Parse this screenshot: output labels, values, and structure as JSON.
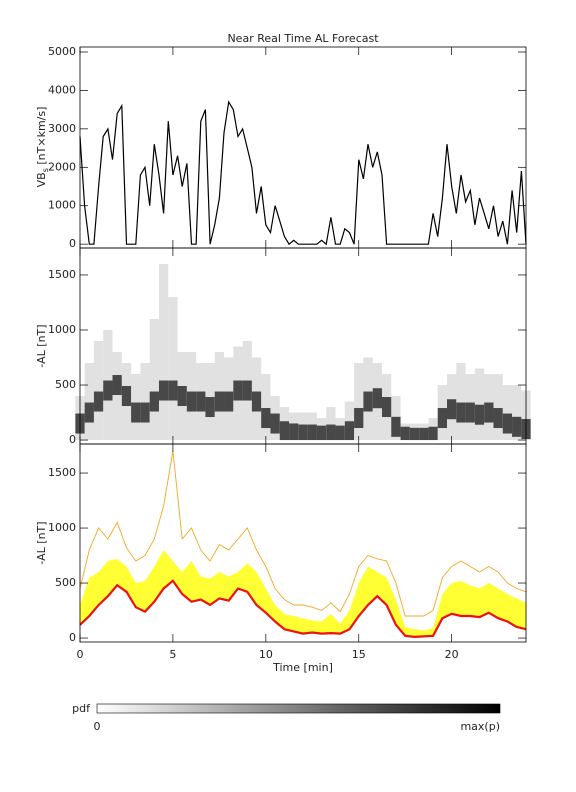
{
  "chart_data": [
    {
      "type": "line",
      "title": "Near Real Time AL Forecast",
      "ylabel": {
        "text": "VB",
        "subscript": "s",
        "units": " [nT×km/s]"
      },
      "xlim": [
        0,
        24
      ],
      "xticks": [
        0,
        5,
        10,
        15,
        20
      ],
      "ylim": [
        -100,
        5130
      ],
      "yticks": [
        0,
        1000,
        2000,
        3000,
        4000,
        5000
      ],
      "x": [
        0,
        0.25,
        0.5,
        0.75,
        1,
        1.25,
        1.5,
        1.75,
        2,
        2.25,
        2.5,
        2.75,
        3,
        3.25,
        3.5,
        3.75,
        4,
        4.25,
        4.5,
        4.75,
        5,
        5.25,
        5.5,
        5.75,
        6,
        6.25,
        6.5,
        6.75,
        7,
        7.25,
        7.5,
        7.75,
        8,
        8.25,
        8.5,
        8.75,
        9,
        9.25,
        9.5,
        9.75,
        10,
        10.25,
        10.5,
        10.75,
        11,
        11.25,
        11.5,
        11.75,
        12,
        12.25,
        12.5,
        12.75,
        13,
        13.25,
        13.5,
        13.75,
        14,
        14.25,
        14.5,
        14.75,
        15,
        15.25,
        15.5,
        15.75,
        16,
        16.25,
        16.5,
        16.75,
        17,
        17.25,
        17.5,
        17.75,
        18,
        18.25,
        18.5,
        18.75,
        19,
        19.25,
        19.5,
        19.75,
        20,
        20.25,
        20.5,
        20.75,
        21,
        21.25,
        21.5,
        21.75,
        22,
        22.25,
        22.5,
        22.75,
        23,
        23.25,
        23.5,
        23.75,
        24
      ],
      "series": [
        {
          "color": "#000000",
          "values": [
            2800,
            1000,
            0,
            0,
            1500,
            2800,
            3000,
            2200,
            3400,
            3600,
            0,
            0,
            0,
            1800,
            2000,
            1000,
            2600,
            1800,
            800,
            3200,
            1800,
            2300,
            1500,
            2100,
            0,
            0,
            3200,
            3500,
            0,
            500,
            1200,
            2900,
            3700,
            3500,
            2800,
            3000,
            2500,
            2000,
            800,
            1500,
            500,
            300,
            1000,
            600,
            200,
            0,
            100,
            0,
            0,
            0,
            0,
            0,
            100,
            0,
            700,
            0,
            0,
            400,
            300,
            0,
            2200,
            1700,
            2600,
            2000,
            2400,
            1800,
            0,
            0,
            0,
            0,
            0,
            0,
            0,
            0,
            0,
            0,
            800,
            200,
            1200,
            2600,
            1500,
            800,
            1800,
            1100,
            1400,
            500,
            1200,
            800,
            400,
            1000,
            200,
            600,
            0,
            1400,
            300,
            1900,
            0
          ]
        }
      ]
    },
    {
      "type": "heatmap",
      "ylabel": "-AL [nT]",
      "xlim": [
        0,
        24
      ],
      "xticks": [
        0,
        5,
        10,
        15,
        20
      ],
      "ylim": [
        -36,
        1745
      ],
      "yticks": [
        0,
        500,
        1000,
        1500
      ],
      "x": [
        0,
        0.5,
        1,
        1.5,
        2,
        2.5,
        3,
        3.5,
        4,
        4.5,
        5,
        5.5,
        6,
        6.5,
        7,
        7.5,
        8,
        8.5,
        9,
        9.5,
        10,
        10.5,
        11,
        11.5,
        12,
        12.5,
        13,
        13.5,
        14,
        14.5,
        15,
        15.5,
        16,
        16.5,
        17,
        17.5,
        18,
        18.5,
        19,
        19.5,
        20,
        20.5,
        21,
        21.5,
        22,
        22.5,
        23,
        23.5,
        24
      ],
      "series": [
        {
          "color": "#222222",
          "values": [
            150,
            250,
            350,
            450,
            500,
            400,
            250,
            250,
            350,
            450,
            450,
            400,
            350,
            350,
            300,
            350,
            350,
            450,
            450,
            350,
            200,
            150,
            80,
            60,
            50,
            50,
            40,
            50,
            40,
            80,
            200,
            350,
            380,
            300,
            120,
            30,
            20,
            20,
            30,
            200,
            280,
            250,
            250,
            230,
            250,
            200,
            150,
            120,
            100
          ]
        },
        {
          "color": "#c8c8c8",
          "values": [
            400,
            700,
            900,
            1000,
            800,
            700,
            600,
            700,
            1100,
            1600,
            1300,
            800,
            800,
            700,
            700,
            800,
            750,
            850,
            900,
            750,
            600,
            400,
            300,
            250,
            250,
            250,
            200,
            300,
            200,
            350,
            700,
            750,
            700,
            600,
            400,
            150,
            150,
            150,
            200,
            500,
            600,
            700,
            600,
            650,
            600,
            600,
            500,
            500,
            450
          ]
        }
      ]
    },
    {
      "type": "line",
      "ylabel": "-AL [nT]",
      "xlabel": "Time [min]",
      "xlim": [
        0,
        24
      ],
      "xticks": [
        0,
        5,
        10,
        15,
        20
      ],
      "ylim": [
        -36,
        1764
      ],
      "yticks": [
        0,
        500,
        1000,
        1500
      ],
      "x": [
        0,
        0.5,
        1,
        1.5,
        2,
        2.5,
        3,
        3.5,
        4,
        4.5,
        5,
        5.5,
        6,
        6.5,
        7,
        7.5,
        8,
        8.5,
        9,
        9.5,
        10,
        10.5,
        11,
        11.5,
        12,
        12.5,
        13,
        13.5,
        14,
        14.5,
        15,
        15.5,
        16,
        16.5,
        17,
        17.5,
        18,
        18.5,
        19,
        19.5,
        20,
        20.5,
        21,
        21.5,
        22,
        22.5,
        23,
        23.5,
        24
      ],
      "series": [
        {
          "color": "#ee1111",
          "values": [
            120,
            200,
            300,
            380,
            480,
            420,
            280,
            240,
            330,
            450,
            520,
            400,
            330,
            350,
            300,
            360,
            340,
            450,
            420,
            300,
            230,
            150,
            80,
            60,
            40,
            50,
            40,
            45,
            40,
            80,
            200,
            300,
            380,
            300,
            120,
            20,
            10,
            15,
            20,
            180,
            220,
            200,
            200,
            190,
            230,
            180,
            150,
            100,
            80
          ]
        },
        {
          "color": "#ffff33",
          "values": [
            300,
            550,
            600,
            700,
            720,
            650,
            500,
            520,
            650,
            800,
            700,
            600,
            700,
            560,
            540,
            600,
            560,
            600,
            680,
            600,
            450,
            300,
            220,
            200,
            180,
            160,
            150,
            220,
            130,
            250,
            500,
            650,
            600,
            550,
            350,
            100,
            80,
            70,
            90,
            400,
            500,
            520,
            480,
            450,
            500,
            450,
            400,
            360,
            320
          ]
        },
        {
          "color": "#f5a623",
          "values": [
            450,
            800,
            1000,
            900,
            1050,
            820,
            700,
            750,
            900,
            1200,
            1700,
            900,
            1000,
            800,
            700,
            850,
            800,
            900,
            1000,
            800,
            650,
            450,
            350,
            300,
            300,
            280,
            250,
            320,
            240,
            400,
            650,
            750,
            720,
            700,
            500,
            200,
            200,
            200,
            250,
            550,
            650,
            700,
            650,
            600,
            650,
            600,
            500,
            450,
            420
          ]
        }
      ]
    }
  ],
  "colorbar": {
    "title": "pdf",
    "min": 0,
    "max_label": "max(p)"
  }
}
